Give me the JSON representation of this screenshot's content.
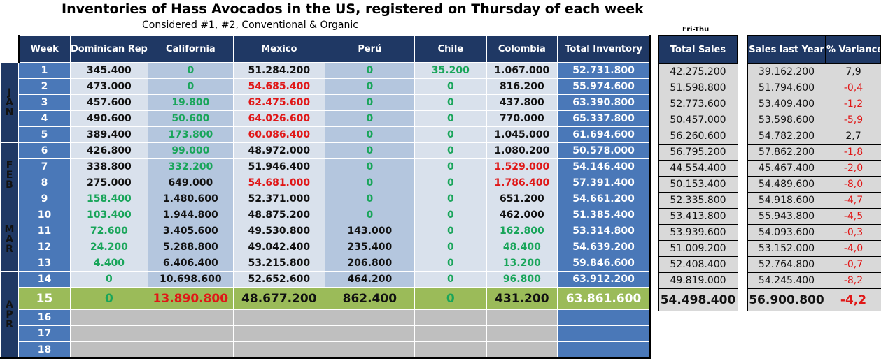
{
  "title": "Inventories of Hass Avocados in the US, registered on Thursday of each week",
  "subtitle": "Considered #1, #2, Conventional & Organic",
  "fri_thu": "Fri-Thu",
  "headers": {
    "week": "Week",
    "dominican": "Dominican Rep",
    "california": "California",
    "mexico": "Mexico",
    "peru": "Perú",
    "chile": "Chile",
    "colombia": "Colombia",
    "total": "Total Inventory",
    "total_sales": "Total Sales",
    "sales_last_year": "Sales last Year",
    "variance": "% Variance"
  },
  "months": {
    "jan": [
      "J",
      "A",
      "N"
    ],
    "feb": [
      "F",
      "E",
      "B"
    ],
    "mar": [
      "M",
      "A",
      "R"
    ],
    "apr": [
      "A",
      "P",
      "R"
    ]
  },
  "rows": [
    {
      "week": "1",
      "dom": "345.400",
      "cal": "0",
      "mex": "51.284.200",
      "per": "0",
      "chi": "35.200",
      "col": "1.067.000",
      "tot": "52.731.800",
      "sales": "42.275.200",
      "ly": "39.162.200",
      "var": "7,9"
    },
    {
      "week": "2",
      "dom": "473.000",
      "cal": "0",
      "mex": "54.685.400",
      "per": "0",
      "chi": "0",
      "col": "816.200",
      "tot": "55.974.600",
      "sales": "51.598.800",
      "ly": "51.794.600",
      "var": "-0,4"
    },
    {
      "week": "3",
      "dom": "457.600",
      "cal": "19.800",
      "mex": "62.475.600",
      "per": "0",
      "chi": "0",
      "col": "437.800",
      "tot": "63.390.800",
      "sales": "52.773.600",
      "ly": "53.409.400",
      "var": "-1,2"
    },
    {
      "week": "4",
      "dom": "490.600",
      "cal": "50.600",
      "mex": "64.026.600",
      "per": "0",
      "chi": "0",
      "col": "770.000",
      "tot": "65.337.800",
      "sales": "50.457.000",
      "ly": "53.598.600",
      "var": "-5,9"
    },
    {
      "week": "5",
      "dom": "389.400",
      "cal": "173.800",
      "mex": "60.086.400",
      "per": "0",
      "chi": "0",
      "col": "1.045.000",
      "tot": "61.694.600",
      "sales": "56.260.600",
      "ly": "54.782.200",
      "var": "2,7"
    },
    {
      "week": "6",
      "dom": "426.800",
      "cal": "99.000",
      "mex": "48.972.000",
      "per": "0",
      "chi": "0",
      "col": "1.080.200",
      "tot": "50.578.000",
      "sales": "56.795.200",
      "ly": "57.862.200",
      "var": "-1,8"
    },
    {
      "week": "7",
      "dom": "338.800",
      "cal": "332.200",
      "mex": "51.946.400",
      "per": "0",
      "chi": "0",
      "col": "1.529.000",
      "tot": "54.146.400",
      "sales": "44.554.400",
      "ly": "45.467.400",
      "var": "-2,0"
    },
    {
      "week": "8",
      "dom": "275.000",
      "cal": "649.000",
      "mex": "54.681.000",
      "per": "0",
      "chi": "0",
      "col": "1.786.400",
      "tot": "57.391.400",
      "sales": "50.153.400",
      "ly": "54.489.600",
      "var": "-8,0"
    },
    {
      "week": "9",
      "dom": "158.400",
      "cal": "1.480.600",
      "mex": "52.371.000",
      "per": "0",
      "chi": "0",
      "col": "651.200",
      "tot": "54.661.200",
      "sales": "52.335.800",
      "ly": "54.918.600",
      "var": "-4,7"
    },
    {
      "week": "10",
      "dom": "103.400",
      "cal": "1.944.800",
      "mex": "48.875.200",
      "per": "0",
      "chi": "0",
      "col": "462.000",
      "tot": "51.385.400",
      "sales": "53.413.800",
      "ly": "55.943.800",
      "var": "-4,5"
    },
    {
      "week": "11",
      "dom": "72.600",
      "cal": "3.405.600",
      "mex": "49.530.800",
      "per": "143.000",
      "chi": "0",
      "col": "162.800",
      "tot": "53.314.800",
      "sales": "53.939.600",
      "ly": "54.093.600",
      "var": "-0,3"
    },
    {
      "week": "12",
      "dom": "24.200",
      "cal": "5.288.800",
      "mex": "49.042.400",
      "per": "235.400",
      "chi": "0",
      "col": "48.400",
      "tot": "54.639.200",
      "sales": "51.009.200",
      "ly": "53.152.000",
      "var": "-4,0"
    },
    {
      "week": "13",
      "dom": "4.400",
      "cal": "6.406.400",
      "mex": "53.215.800",
      "per": "206.800",
      "chi": "0",
      "col": "13.200",
      "tot": "59.846.600",
      "sales": "52.408.400",
      "ly": "52.764.800",
      "var": "-0,7"
    },
    {
      "week": "14",
      "dom": "0",
      "cal": "10.698.600",
      "mex": "52.652.600",
      "per": "464.200",
      "chi": "0",
      "col": "96.800",
      "tot": "63.912.200",
      "sales": "49.819.000",
      "ly": "54.245.400",
      "var": "-8,2"
    },
    {
      "week": "15",
      "dom": "0",
      "cal": "13.890.800",
      "mex": "48.677.200",
      "per": "862.400",
      "chi": "0",
      "col": "431.200",
      "tot": "63.861.600",
      "sales": "54.498.400",
      "ly": "56.900.800",
      "var": "-4,2"
    }
  ],
  "empty_weeks": [
    "16",
    "17",
    "18"
  ]
}
